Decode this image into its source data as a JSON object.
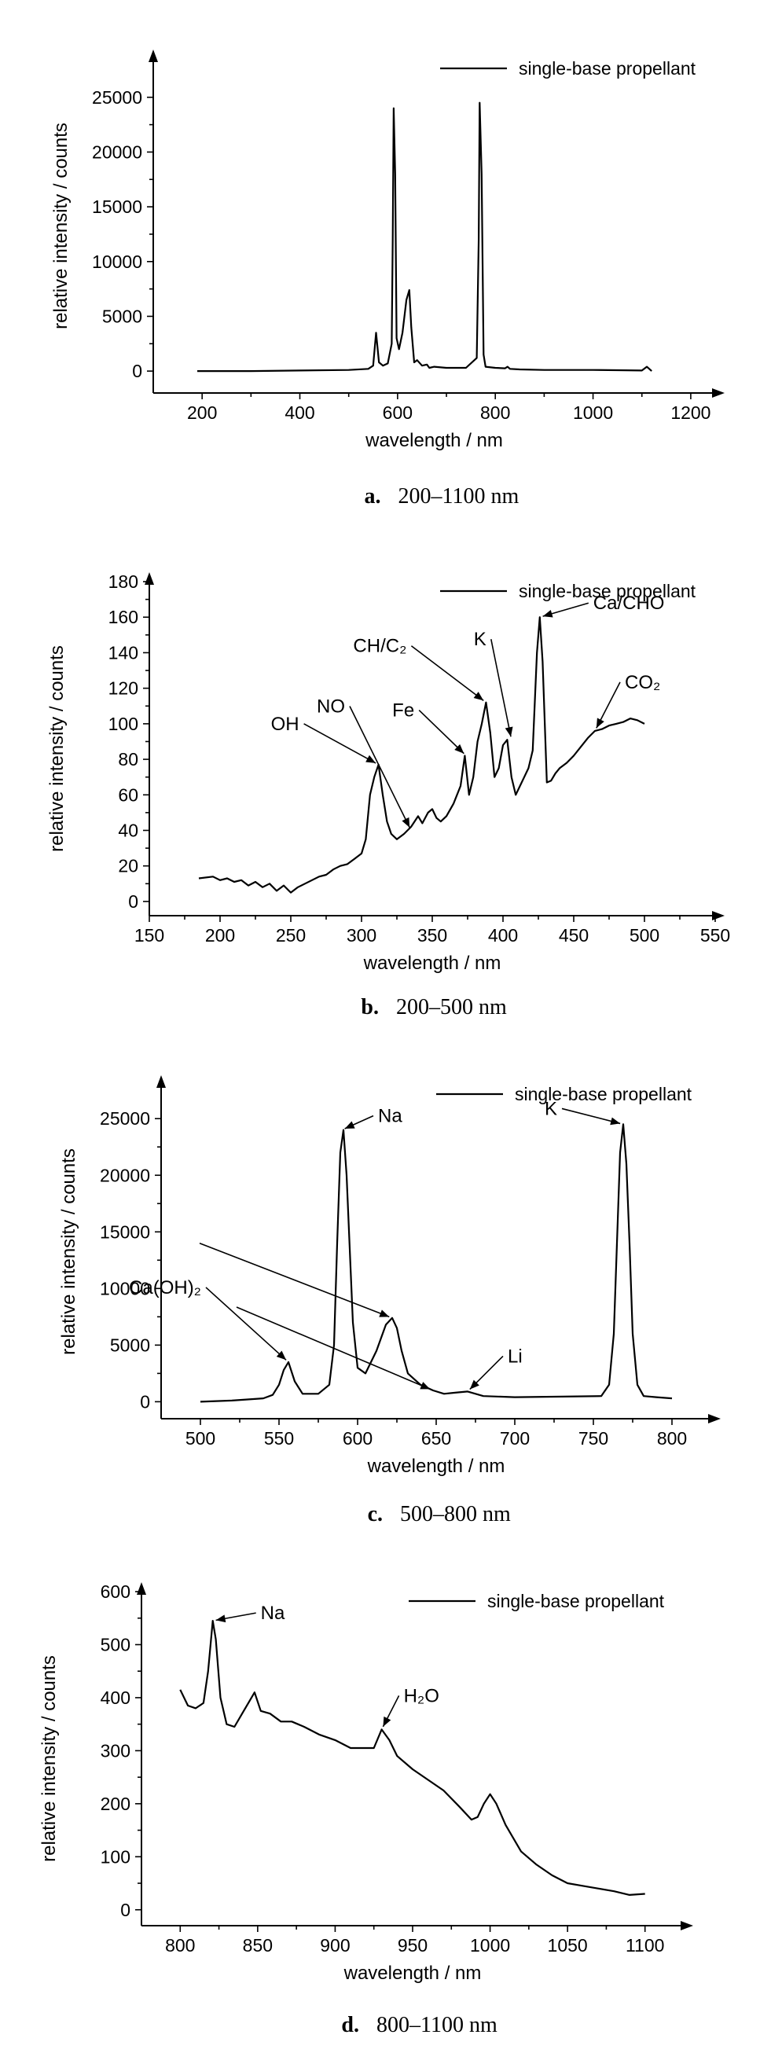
{
  "chart_data": [
    {
      "type": "line",
      "panel_label": "a.",
      "caption": "200–1100 nm",
      "xlabel": "wavelength / nm",
      "ylabel": "relative intensity / counts",
      "xlim": [
        100,
        1250
      ],
      "ylim": [
        -2000,
        28500
      ],
      "xticks": [
        200,
        400,
        600,
        800,
        1000,
        1200
      ],
      "yticks": [
        0,
        5000,
        10000,
        15000,
        20000,
        25000
      ],
      "legend": "top-right",
      "series": [
        {
          "name": "single-base propellant",
          "x": [
            190,
            300,
            400,
            500,
            540,
            550,
            556,
            562,
            570,
            580,
            588,
            590,
            592,
            595,
            598,
            603,
            610,
            618,
            624,
            628,
            634,
            640,
            650,
            660,
            665,
            675,
            700,
            740,
            762,
            766,
            768,
            772,
            776,
            780,
            800,
            820,
            825,
            830,
            850,
            900,
            1000,
            1050,
            1100,
            1110,
            1115,
            1120
          ],
          "y": [
            0,
            0,
            50,
            100,
            200,
            500,
            3500,
            800,
            500,
            700,
            2500,
            12000,
            24000,
            18000,
            3000,
            2000,
            3500,
            6500,
            7400,
            4000,
            800,
            1000,
            500,
            600,
            300,
            400,
            300,
            300,
            1200,
            12000,
            24500,
            18000,
            1500,
            400,
            300,
            250,
            400,
            200,
            150,
            100,
            100,
            80,
            50,
            400,
            200,
            0
          ]
        }
      ],
      "annotations": []
    },
    {
      "type": "line",
      "panel_label": "b.",
      "caption": "200–500 nm",
      "xlabel": "wavelength / nm",
      "ylabel": "relative intensity / counts",
      "xlim": [
        150,
        550
      ],
      "ylim": [
        -8,
        180
      ],
      "xticks": [
        150,
        200,
        250,
        300,
        350,
        400,
        450,
        500,
        550
      ],
      "yticks": [
        0,
        20,
        40,
        60,
        80,
        100,
        120,
        140,
        160,
        180
      ],
      "legend": "top-right",
      "series": [
        {
          "name": "single-base propellant",
          "x": [
            185,
            195,
            200,
            205,
            210,
            215,
            220,
            225,
            230,
            235,
            240,
            245,
            250,
            255,
            260,
            265,
            270,
            275,
            280,
            285,
            290,
            295,
            300,
            303,
            306,
            309,
            312,
            315,
            318,
            321,
            325,
            330,
            335,
            340,
            343,
            347,
            350,
            353,
            356,
            360,
            365,
            370,
            373,
            376,
            379,
            382,
            385,
            388,
            391,
            394,
            397,
            400,
            403,
            406,
            409,
            412,
            415,
            418,
            421,
            424,
            426,
            428,
            431,
            434,
            437,
            440,
            445,
            450,
            455,
            460,
            465,
            470,
            475,
            480,
            485,
            490,
            495,
            500
          ],
          "y": [
            13,
            14,
            12,
            13,
            11,
            12,
            9,
            11,
            8,
            10,
            6,
            9,
            5,
            8,
            10,
            12,
            14,
            15,
            18,
            20,
            21,
            24,
            27,
            35,
            60,
            70,
            77,
            60,
            45,
            38,
            35,
            38,
            42,
            48,
            44,
            50,
            52,
            47,
            45,
            48,
            55,
            65,
            82,
            60,
            70,
            90,
            100,
            112,
            95,
            70,
            75,
            88,
            91,
            70,
            60,
            65,
            70,
            75,
            85,
            140,
            160,
            135,
            67,
            68,
            72,
            75,
            78,
            82,
            87,
            92,
            96,
            97,
            99,
            100,
            101,
            103,
            102,
            100
          ]
        }
      ],
      "annotations": [
        {
          "text": "OH",
          "x": 312,
          "y": 77
        },
        {
          "text": "NO",
          "x": 335,
          "y": 40
        },
        {
          "text": "Fe",
          "x": 374,
          "y": 82
        },
        {
          "text": "CH/C₂",
          "x": 388,
          "y": 112
        },
        {
          "text": "K",
          "x": 406,
          "y": 91
        },
        {
          "text": "Ca/CHO",
          "x": 426,
          "y": 160
        },
        {
          "text": "CO₂",
          "x": 465,
          "y": 96
        }
      ]
    },
    {
      "type": "line",
      "panel_label": "c.",
      "caption": "500–800 nm",
      "xlabel": "wavelength / nm",
      "ylabel": "relative intensity / counts",
      "xlim": [
        475,
        825
      ],
      "ylim": [
        -1500,
        28000
      ],
      "xticks": [
        500,
        550,
        600,
        650,
        700,
        750,
        800
      ],
      "yticks": [
        0,
        5000,
        10000,
        15000,
        20000,
        25000
      ],
      "legend": "top-right",
      "series": [
        {
          "name": "single-base propellant",
          "x": [
            500,
            520,
            540,
            546,
            550,
            553,
            556,
            560,
            565,
            575,
            582,
            585,
            587,
            589,
            591,
            593,
            597,
            600,
            605,
            612,
            618,
            622,
            625,
            628,
            632,
            640,
            648,
            655,
            662,
            670,
            680,
            700,
            730,
            755,
            760,
            763,
            765,
            767,
            769,
            771,
            773,
            775,
            778,
            782,
            790,
            800
          ],
          "y": [
            0,
            100,
            300,
            600,
            1500,
            2800,
            3500,
            1800,
            700,
            700,
            1500,
            5000,
            14000,
            22000,
            24000,
            20000,
            7000,
            3000,
            2500,
            4500,
            6800,
            7400,
            6500,
            4500,
            2500,
            1500,
            1000,
            700,
            800,
            900,
            500,
            400,
            450,
            500,
            1500,
            6000,
            14000,
            22000,
            24500,
            21000,
            14000,
            6000,
            1500,
            500,
            400,
            300
          ]
        }
      ],
      "annotations": [
        {
          "text": "Na",
          "x": 590,
          "y": 24000
        },
        {
          "text": "K",
          "x": 769,
          "y": 24500
        },
        {
          "text": "Ca(OH)₂",
          "x": 556,
          "y": 3500
        },
        {
          "text": "Ca(OH)₂",
          "x": 622,
          "y": 7400
        },
        {
          "text": "Ca(OH)₂",
          "x": 648,
          "y": 1000
        },
        {
          "text": "Li",
          "x": 670,
          "y": 900
        }
      ]
    },
    {
      "type": "line",
      "panel_label": "d.",
      "caption": "800–1100 nm",
      "xlabel": "wavelength / nm",
      "ylabel": "relative intensity / counts",
      "xlim": [
        775,
        1125
      ],
      "ylim": [
        -30,
        600
      ],
      "xticks": [
        800,
        850,
        900,
        950,
        1000,
        1050,
        1100
      ],
      "yticks": [
        0,
        100,
        200,
        300,
        400,
        500,
        600
      ],
      "legend": "top-right",
      "series": [
        {
          "name": "single-base propellant",
          "x": [
            800,
            805,
            810,
            815,
            818,
            821,
            823,
            826,
            830,
            835,
            840,
            845,
            848,
            852,
            858,
            865,
            872,
            880,
            890,
            900,
            910,
            915,
            920,
            925,
            930,
            935,
            940,
            950,
            960,
            970,
            980,
            988,
            992,
            996,
            1000,
            1004,
            1010,
            1020,
            1030,
            1040,
            1050,
            1060,
            1070,
            1080,
            1090,
            1100
          ],
          "y": [
            415,
            385,
            380,
            390,
            450,
            545,
            510,
            400,
            350,
            345,
            370,
            395,
            410,
            375,
            370,
            355,
            355,
            345,
            330,
            320,
            305,
            305,
            305,
            305,
            340,
            320,
            290,
            265,
            245,
            225,
            195,
            170,
            175,
            200,
            218,
            200,
            160,
            110,
            85,
            65,
            50,
            45,
            40,
            35,
            28,
            30
          ]
        }
      ],
      "annotations": [
        {
          "text": "Na",
          "x": 821,
          "y": 545
        },
        {
          "text": "H₂O",
          "x": 930,
          "y": 340
        }
      ]
    }
  ]
}
